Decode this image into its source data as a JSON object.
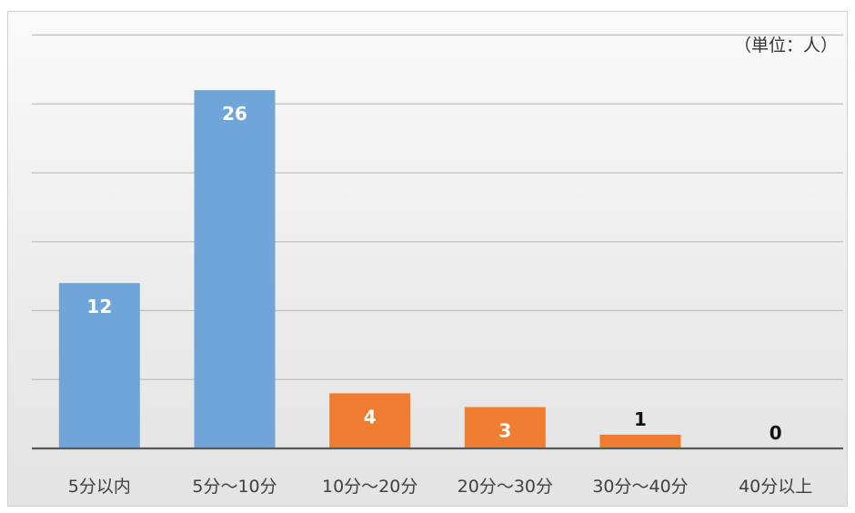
{
  "chart_data": {
    "type": "bar",
    "title": "",
    "unit_note": "（単位：人）",
    "xlabel": "",
    "ylabel": "",
    "ylim": [
      0,
      30
    ],
    "gridlines": [
      0,
      5,
      10,
      15,
      20,
      25,
      30
    ],
    "grid": true,
    "categories": [
      "5分以内",
      "5分～10分",
      "10分～20分",
      "20分～30分",
      "30分～40分",
      "40分以上"
    ],
    "values": [
      12,
      26,
      4,
      3,
      1,
      0
    ],
    "bar_colors": [
      "#6fa5d8",
      "#6fa5d8",
      "#ee7d31",
      "#ee7d31",
      "#ee7d31",
      "#ee7d31"
    ],
    "data_labels": [
      "12",
      "26",
      "4",
      "3",
      "1",
      "0"
    ],
    "colors": {
      "blue": "#6fa5d8",
      "orange": "#ee7d31",
      "label_inside": "#ffffff",
      "label_outside": "#111111",
      "axis": "#595959",
      "grid": "#bfbfbf"
    }
  }
}
